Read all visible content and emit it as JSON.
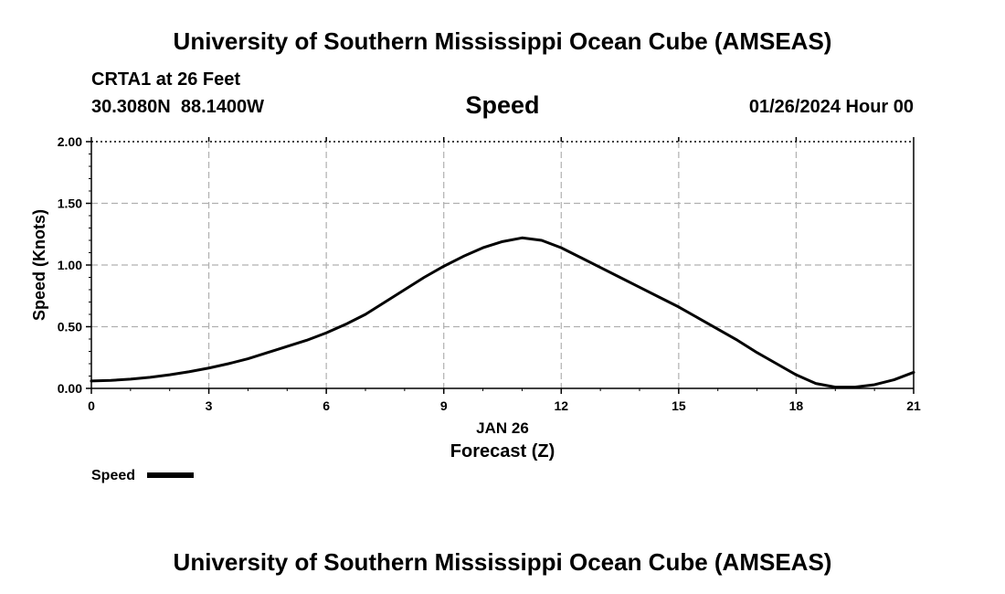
{
  "header": {
    "title": "University of Southern Mississippi Ocean Cube (AMSEAS)",
    "station": "CRTA1 at 26 Feet",
    "coords": "30.3080N  88.1400W",
    "date": "01/26/2024 Hour 00",
    "footer_title": "University of Southern Mississippi Ocean Cube (AMSEAS)"
  },
  "chart_data": {
    "type": "line",
    "title": "Speed",
    "xlabel": "Forecast (Z)",
    "xlabel_date": "JAN 26",
    "ylabel": "Speed (Knots)",
    "xlim": [
      0,
      21
    ],
    "ylim": [
      0,
      2
    ],
    "x_ticks": [
      0,
      3,
      6,
      9,
      12,
      15,
      18,
      21
    ],
    "x_tick_labels": [
      "0",
      "3",
      "6",
      "9",
      "12",
      "15",
      "18",
      "21"
    ],
    "y_ticks": [
      0,
      0.5,
      1,
      1.5,
      2
    ],
    "y_tick_labels": [
      "0.00",
      "0.50",
      "1.00",
      "1.50",
      "2.00"
    ],
    "grid": true,
    "legend": {
      "placement": "bottom-left",
      "label": "Speed"
    },
    "series": [
      {
        "name": "Speed",
        "color": "#000000",
        "x": [
          0,
          0.5,
          1,
          1.5,
          2,
          2.5,
          3,
          3.5,
          4,
          4.5,
          5,
          5.5,
          6,
          6.5,
          7,
          7.5,
          8,
          8.5,
          9,
          9.5,
          10,
          10.5,
          11,
          11.5,
          12,
          12.5,
          13,
          13.5,
          14,
          14.5,
          15,
          15.5,
          16,
          16.5,
          17,
          17.5,
          18,
          18.5,
          19,
          19.5,
          20,
          20.5,
          21
        ],
        "y": [
          0.06,
          0.065,
          0.075,
          0.09,
          0.11,
          0.135,
          0.165,
          0.2,
          0.24,
          0.29,
          0.34,
          0.39,
          0.45,
          0.52,
          0.6,
          0.7,
          0.8,
          0.9,
          0.99,
          1.07,
          1.14,
          1.19,
          1.22,
          1.2,
          1.14,
          1.06,
          0.98,
          0.9,
          0.82,
          0.74,
          0.66,
          0.57,
          0.48,
          0.39,
          0.29,
          0.2,
          0.11,
          0.04,
          0.01,
          0.01,
          0.03,
          0.07,
          0.13
        ]
      }
    ]
  }
}
